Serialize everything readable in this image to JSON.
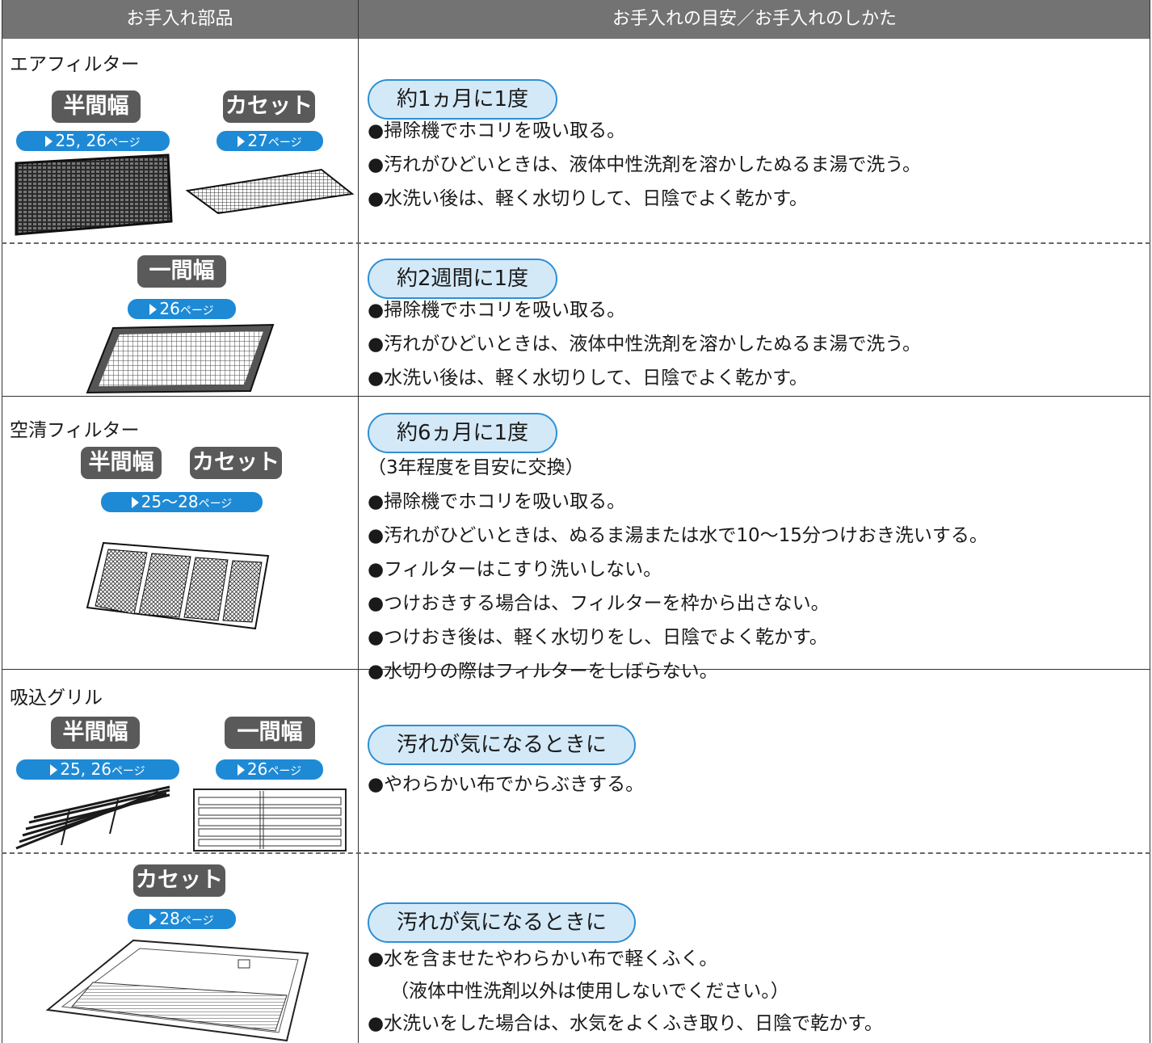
{
  "table": {
    "header": [
      "お手入れ部品",
      "お手入れの目安／お手入れのしかた"
    ],
    "rows": [
      {
        "part": "エアフィルター",
        "variants": [
          {
            "badge": "半間幅",
            "pages": "25, 26",
            "unit": "ページ"
          },
          {
            "badge": "カセット",
            "pages": "27",
            "unit": "ページ"
          }
        ],
        "schedule": "約1ヵ月に1度",
        "items": [
          "●掃除機でホコリを吸い取る。",
          "●汚れがひどいときは、液体中性洗剤を溶かしたぬるま湯で洗う。",
          "●水洗い後は、軽く水切りして、日陰でよく乾かす。"
        ]
      },
      {
        "variants": [
          {
            "badge": "一間幅",
            "pages": "26",
            "unit": "ページ"
          }
        ],
        "schedule": "約2週間に1度",
        "items": [
          "●掃除機でホコリを吸い取る。",
          "●汚れがひどいときは、液体中性洗剤を溶かしたぬるま湯で洗う。",
          "●水洗い後は、軽く水切りして、日陰でよく乾かす。"
        ]
      },
      {
        "part": "空清フィルター",
        "badges": [
          "半間幅",
          "カセット"
        ],
        "pages": "25〜28",
        "unit": "ページ",
        "schedule": "約6ヵ月に1度",
        "note": "（3年程度を目安に交換）",
        "items": [
          "●掃除機でホコリを吸い取る。",
          "●汚れがひどいときは、ぬるま湯または水で10〜15分つけおき洗いする。",
          "●フィルターはこすり洗いしない。",
          "●つけおきする場合は、フィルターを枠から出さない。",
          "●つけおき後は、軽く水切りをし、日陰でよく乾かす。",
          "●水切りの際はフィルターをしぼらない。"
        ]
      },
      {
        "part": "吸込グリル",
        "variants": [
          {
            "badge": "半間幅",
            "pages": "25, 26",
            "unit": "ページ"
          },
          {
            "badge": "一間幅",
            "pages": "26",
            "unit": "ページ"
          }
        ],
        "schedule": "汚れが気になるときに",
        "items": [
          "●やわらかい布でからぶきする。"
        ]
      },
      {
        "variants": [
          {
            "badge": "カセット",
            "pages": "28",
            "unit": "ページ"
          }
        ],
        "schedule": "汚れが気になるときに",
        "items": [
          "●水を含ませたやわらかい布で軽くふく。",
          "（液体中性洗剤以外は使用しないでください。）",
          "●水洗いをした場合は、水気をよくふき取り、日陰で乾かす。"
        ]
      }
    ]
  }
}
